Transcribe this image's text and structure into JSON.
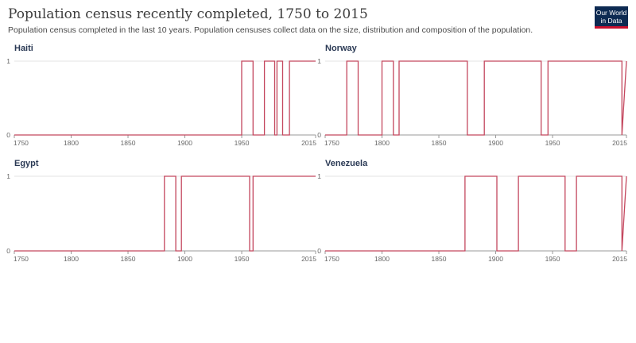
{
  "title": "Population census recently completed, 1750 to 2015",
  "subtitle": "Population census completed in the last 10 years. Population censuses collect data on the size, distribution and composition of the population.",
  "logo": {
    "line1": "Our World",
    "line2": "in Data"
  },
  "colors": {
    "line": "#c4475e",
    "title": "#2b3a55",
    "logo_bg": "#0d2a52",
    "logo_accent": "#c8102e"
  },
  "chart_data": [
    {
      "type": "line",
      "title": "Haiti",
      "xlim": [
        1750,
        2015
      ],
      "ylim": [
        0,
        1
      ],
      "xticks": [
        "1750",
        "1800",
        "1850",
        "1900",
        "1950",
        "2015"
      ],
      "yticks": [
        "0",
        "1"
      ],
      "x": [
        1750,
        1950,
        1950,
        1960,
        1960,
        1970,
        1970,
        1979,
        1979,
        1981,
        1981,
        1986,
        1986,
        1992,
        1992,
        2015
      ],
      "y": [
        0,
        0,
        1,
        1,
        0,
        0,
        1,
        1,
        0,
        0,
        1,
        1,
        0,
        0,
        1,
        1
      ]
    },
    {
      "type": "line",
      "title": "Norway",
      "xlim": [
        1750,
        2015
      ],
      "ylim": [
        0,
        1
      ],
      "xticks": [
        "1750",
        "1800",
        "1850",
        "1900",
        "1950",
        "2015"
      ],
      "yticks": [
        "0",
        "1"
      ],
      "x": [
        1750,
        1769,
        1769,
        1779,
        1779,
        1800,
        1800,
        1810,
        1810,
        1815,
        1815,
        1875,
        1875,
        1890,
        1890,
        1940,
        1940,
        1946,
        1946,
        2011,
        2011,
        2015
      ],
      "y": [
        0,
        0,
        1,
        1,
        0,
        0,
        1,
        1,
        0,
        0,
        1,
        1,
        0,
        0,
        1,
        1,
        0,
        0,
        1,
        1,
        0,
        1
      ]
    },
    {
      "type": "line",
      "title": "Egypt",
      "xlim": [
        1750,
        2015
      ],
      "ylim": [
        0,
        1
      ],
      "xticks": [
        "1750",
        "1800",
        "1850",
        "1900",
        "1950",
        "2015"
      ],
      "yticks": [
        "0",
        "1"
      ],
      "x": [
        1750,
        1882,
        1882,
        1892,
        1892,
        1897,
        1897,
        1957,
        1957,
        1960,
        1960,
        2015
      ],
      "y": [
        0,
        0,
        1,
        1,
        0,
        0,
        1,
        1,
        0,
        0,
        1,
        1
      ]
    },
    {
      "type": "line",
      "title": "Venezuela",
      "xlim": [
        1750,
        2015
      ],
      "ylim": [
        0,
        1
      ],
      "xticks": [
        "1750",
        "1800",
        "1850",
        "1900",
        "1950",
        "2015"
      ],
      "yticks": [
        "0",
        "1"
      ],
      "x": [
        1750,
        1873,
        1873,
        1901,
        1901,
        1920,
        1920,
        1961,
        1961,
        1971,
        1971,
        2011,
        2011,
        2015
      ],
      "y": [
        0,
        0,
        1,
        1,
        0,
        0,
        1,
        1,
        0,
        0,
        1,
        1,
        0,
        1
      ]
    }
  ]
}
